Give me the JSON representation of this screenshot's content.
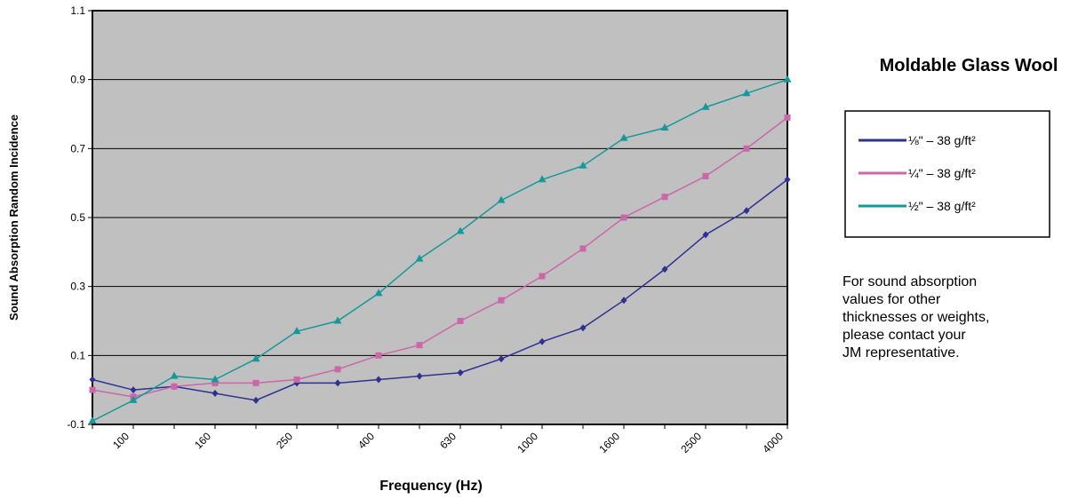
{
  "chart_data": {
    "type": "line",
    "x_label": "Frequency (Hz)",
    "y_label": "Sound Absorption Random Incidence",
    "categories": [
      null,
      "100",
      null,
      "160",
      null,
      "250",
      null,
      "400",
      null,
      "630",
      null,
      "1000",
      null,
      "1600",
      null,
      "2500",
      null,
      "4000"
    ],
    "series": [
      {
        "name": "⅛\" – 38 g/ft²",
        "color": "#2e3192",
        "marker": "diamond",
        "values": [
          0.03,
          0.0,
          0.01,
          -0.01,
          -0.03,
          0.02,
          0.02,
          0.03,
          0.04,
          0.05,
          0.09,
          0.14,
          0.18,
          0.26,
          0.35,
          0.45,
          0.52,
          0.61
        ]
      },
      {
        "name": "¼\" – 38 g/ft²",
        "color": "#cc66aa",
        "marker": "square",
        "values": [
          0.0,
          -0.02,
          0.01,
          0.02,
          0.02,
          0.03,
          0.06,
          0.1,
          0.13,
          0.2,
          0.26,
          0.33,
          0.41,
          0.5,
          0.56,
          0.62,
          0.7,
          0.79
        ]
      },
      {
        "name": "½\" – 38 g/ft²",
        "color": "#13999a",
        "marker": "triangle",
        "values": [
          -0.09,
          -0.03,
          0.04,
          0.03,
          0.09,
          0.17,
          0.2,
          0.28,
          0.38,
          0.46,
          0.55,
          0.61,
          0.65,
          0.73,
          0.76,
          0.82,
          0.86,
          0.9
        ]
      }
    ],
    "ylim": [
      -0.1,
      1.1
    ],
    "yticks": [
      -0.1,
      0.1,
      0.3,
      0.5,
      0.7,
      0.9,
      1.1
    ],
    "grid": true,
    "legend_title": "Moldable Glass Wool",
    "legend_position": "right",
    "note": [
      "For sound absorption",
      "values for other",
      "thicknesses or weights,",
      "please contact your",
      "JM representative."
    ]
  }
}
